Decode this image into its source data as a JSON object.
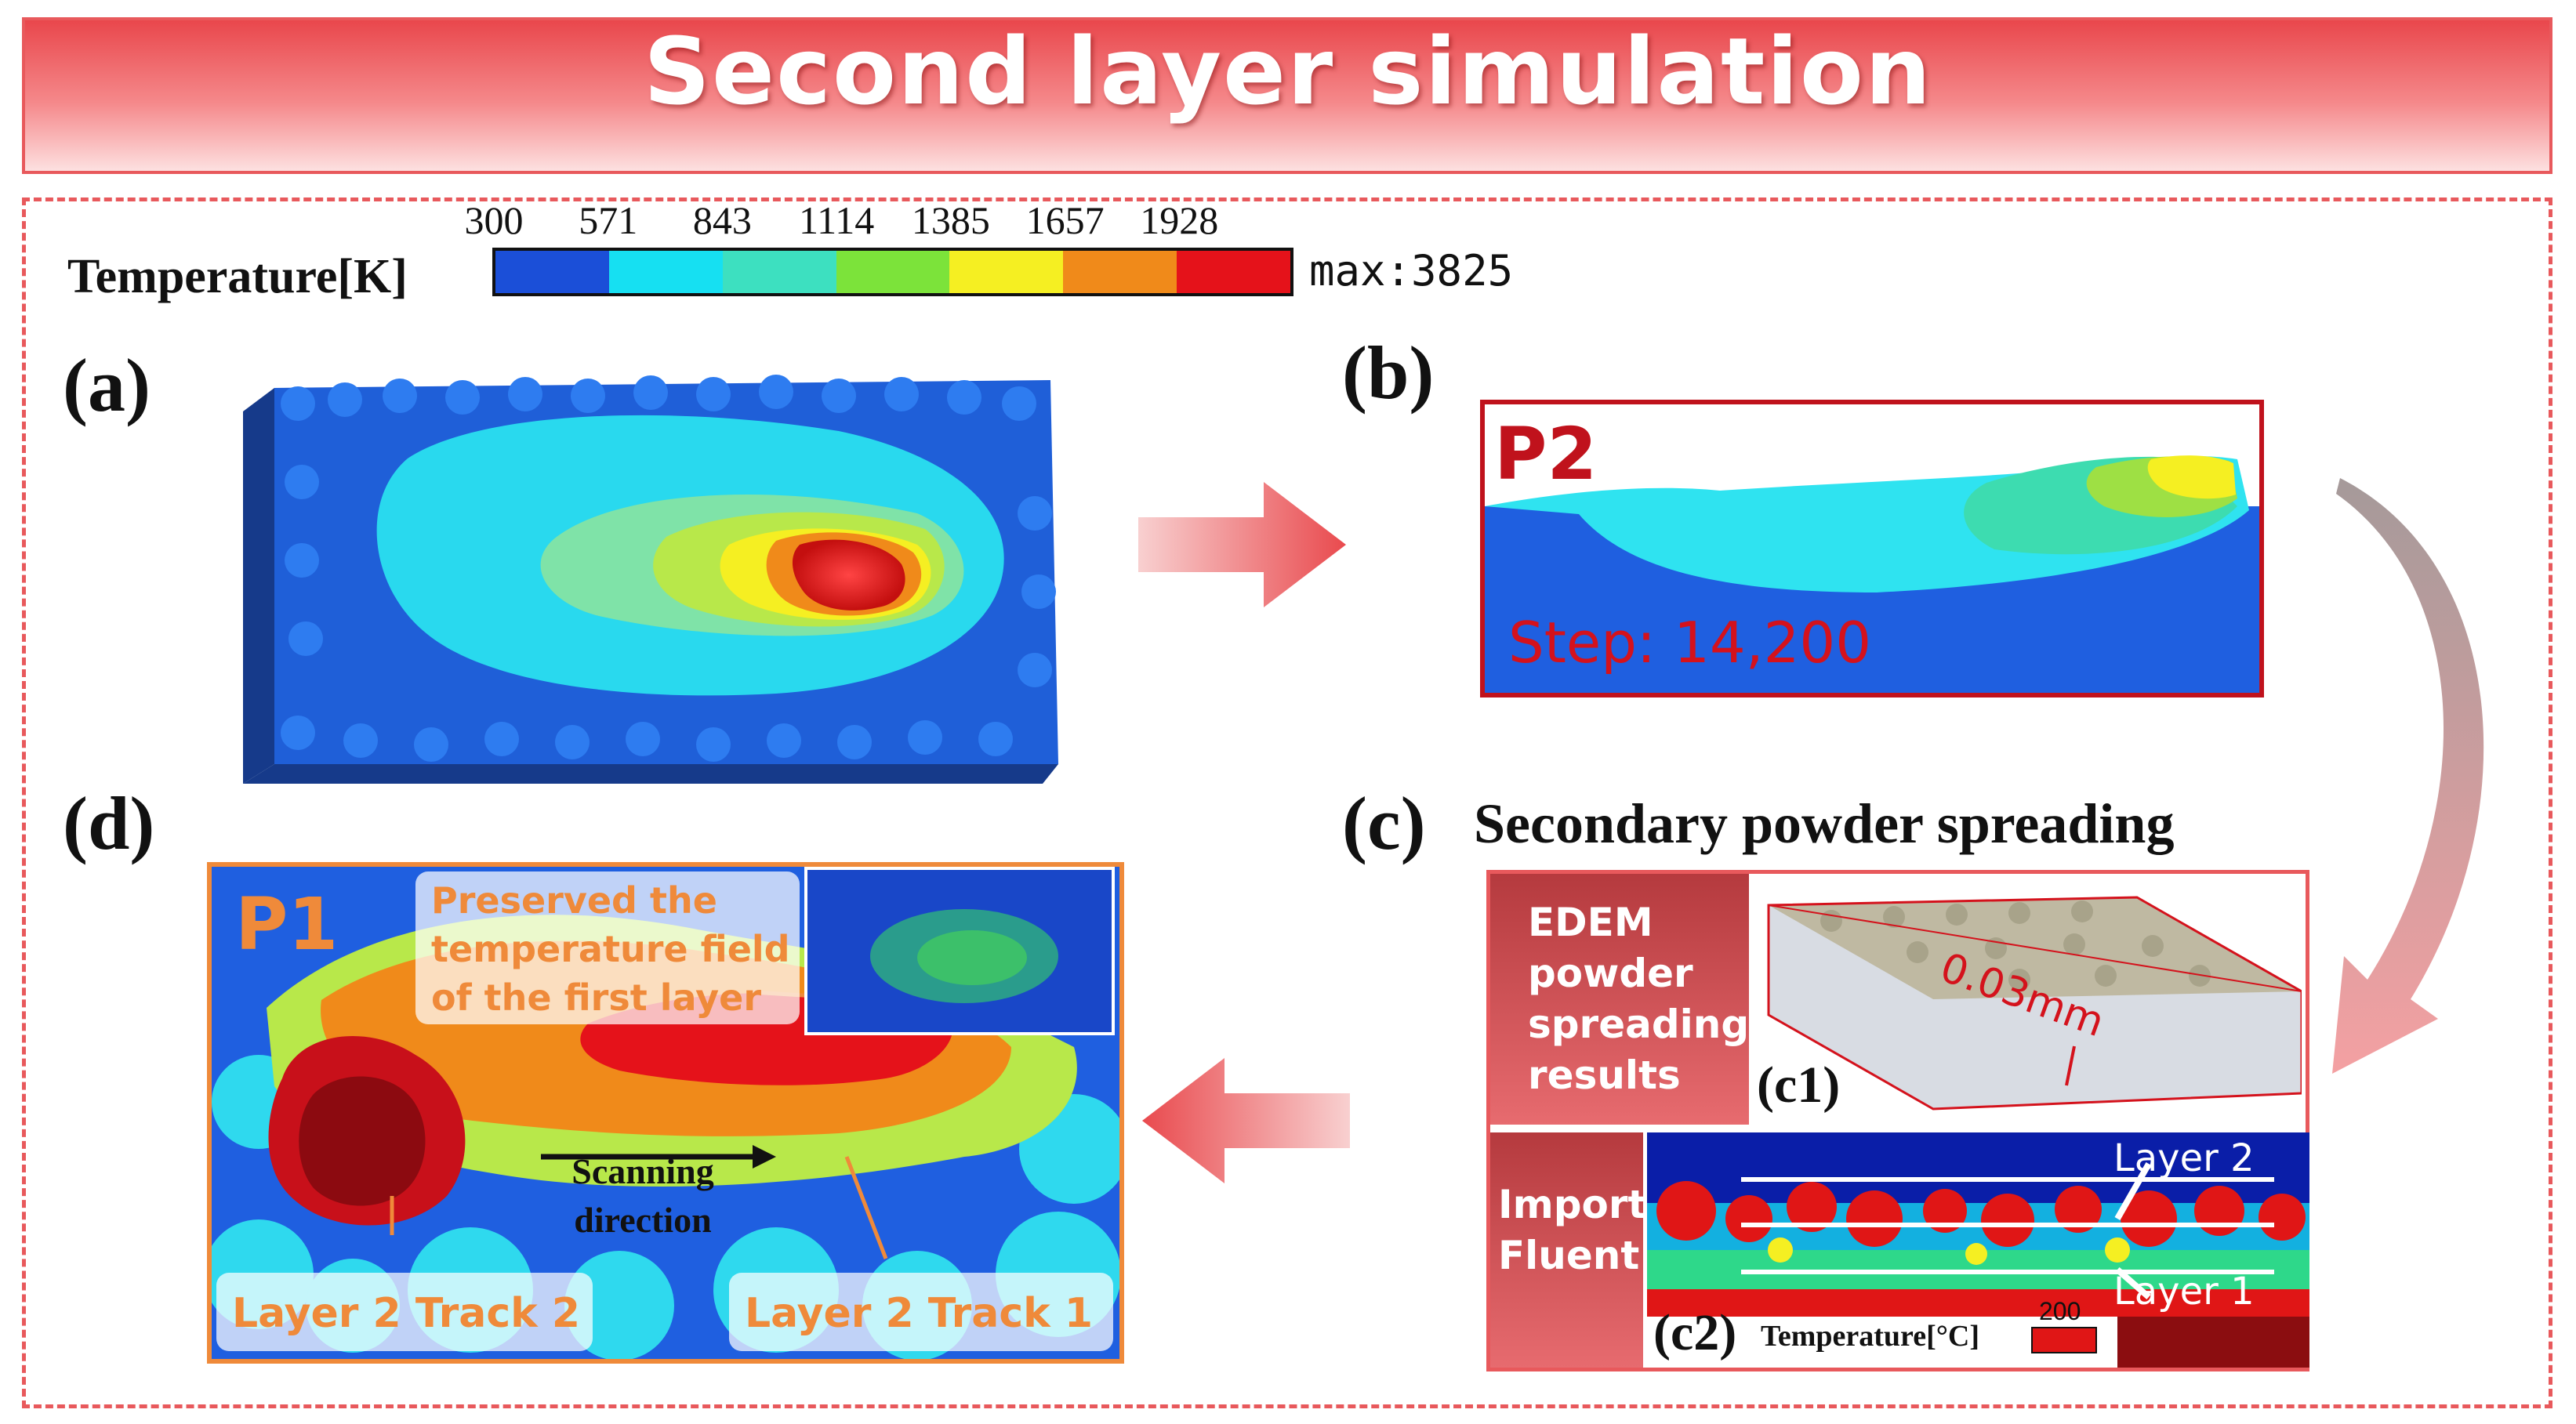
{
  "banner": {
    "title": "Second layer simulation"
  },
  "colorbar": {
    "label": "Temperature[K]",
    "ticks": [
      "300",
      "571",
      "843",
      "1114",
      "1385",
      "1657",
      "1928"
    ],
    "max_label": "max:3825",
    "colors": [
      "#1b4fd8",
      "#16e0f2",
      "#3de0c0",
      "#7ce33a",
      "#f5ef22",
      "#f08a1a",
      "#e5121a"
    ]
  },
  "panel_a": {
    "label": "(a)"
  },
  "panel_b": {
    "label": "(b)",
    "tag": "P2",
    "step": "Step: 14,200"
  },
  "panel_c": {
    "label": "(c)",
    "heading": "Secondary powder spreading",
    "c1_text": [
      "EDEM",
      "powder",
      "spreading",
      "results"
    ],
    "c1_label": "(c1)",
    "c1_dim": "0.03mm",
    "c2_text": [
      "Import",
      "Fluent"
    ],
    "c2_label": "(c2)",
    "c2_layer2": "Layer 2",
    "c2_layer1": "Layer 1",
    "c2_temp_label": "Temperature[°C]",
    "c2_temp_value": "200"
  },
  "panel_d": {
    "label": "(d)",
    "tag": "P1",
    "preserved": [
      "Preserved the",
      "temperature field",
      "of the first layer"
    ],
    "scan": [
      "Scanning",
      "direction"
    ],
    "track2": "Layer 2 Track 2",
    "track1": "Layer 2 Track 1"
  },
  "colors": {
    "accent_red": "#e8595c",
    "frame_red": "#c0121c",
    "orange": "#ef8a3a"
  }
}
